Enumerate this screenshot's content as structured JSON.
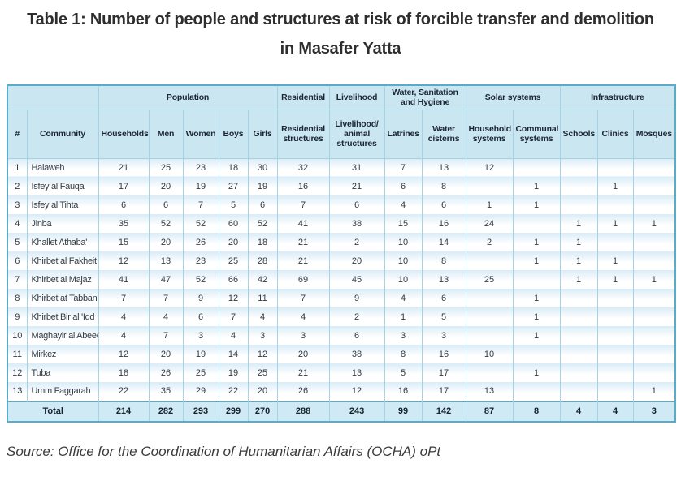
{
  "chart_data": {
    "type": "table",
    "title": "Table 1: Number of people and structures at risk of forcible transfer and demolition in Masafer Yatta",
    "source": "Source: Office for the Coordination of Humanitarian Affairs (OCHA) oPt",
    "group_headers": [
      {
        "label": "",
        "colspan": 2
      },
      {
        "label": "Population",
        "colspan": 5
      },
      {
        "label": "Residential",
        "colspan": 1
      },
      {
        "label": "Livelihood",
        "colspan": 1
      },
      {
        "label": "Water, Sanitation and Hygiene",
        "colspan": 2
      },
      {
        "label": "Solar systems",
        "colspan": 2
      },
      {
        "label": "Infrastructure",
        "colspan": 3
      }
    ],
    "columns": [
      "#",
      "Community",
      "Households",
      "Men",
      "Women",
      "Boys",
      "Girls",
      "Residential structures",
      "Livelihood/ animal structures",
      "Latrines",
      "Water cisterns",
      "Household systems",
      "Communal systems",
      "Schools",
      "Clinics",
      "Mosques"
    ],
    "rows": [
      [
        1,
        "Halaweh",
        21,
        25,
        23,
        18,
        30,
        32,
        31,
        7,
        13,
        12,
        "",
        "",
        "",
        ""
      ],
      [
        2,
        "Isfey al Fauqa",
        17,
        20,
        19,
        27,
        19,
        16,
        21,
        6,
        8,
        "",
        1,
        "",
        1,
        ""
      ],
      [
        3,
        "Isfey al Tihta",
        6,
        6,
        7,
        5,
        6,
        7,
        6,
        4,
        6,
        1,
        1,
        "",
        "",
        ""
      ],
      [
        4,
        "Jinba",
        35,
        52,
        52,
        60,
        52,
        41,
        38,
        15,
        16,
        24,
        "",
        1,
        1,
        1
      ],
      [
        5,
        "Khallet Athaba'",
        15,
        20,
        26,
        20,
        18,
        21,
        2,
        10,
        14,
        2,
        1,
        1,
        "",
        ""
      ],
      [
        6,
        "Khirbet al Fakheit",
        12,
        13,
        23,
        25,
        28,
        21,
        20,
        10,
        8,
        "",
        1,
        1,
        1,
        ""
      ],
      [
        7,
        "Khirbet al Majaz",
        41,
        47,
        52,
        66,
        42,
        69,
        45,
        10,
        13,
        25,
        "",
        1,
        1,
        1
      ],
      [
        8,
        "Khirbet at Tabban",
        7,
        7,
        9,
        12,
        11,
        7,
        9,
        4,
        6,
        "",
        1,
        "",
        "",
        ""
      ],
      [
        9,
        "Khirbet Bir al 'Idd",
        4,
        4,
        6,
        7,
        4,
        4,
        2,
        1,
        5,
        "",
        1,
        "",
        "",
        ""
      ],
      [
        10,
        "Maghayir al Abeed",
        4,
        7,
        3,
        4,
        3,
        3,
        6,
        3,
        3,
        "",
        1,
        "",
        "",
        ""
      ],
      [
        11,
        "Mirkez",
        12,
        20,
        19,
        14,
        12,
        20,
        38,
        8,
        16,
        10,
        "",
        "",
        "",
        ""
      ],
      [
        12,
        "Tuba",
        18,
        26,
        25,
        19,
        25,
        21,
        13,
        5,
        17,
        "",
        1,
        "",
        "",
        ""
      ],
      [
        13,
        "Umm Faggarah",
        22,
        35,
        29,
        22,
        20,
        26,
        12,
        16,
        17,
        13,
        "",
        "",
        "",
        1
      ]
    ],
    "total_row": {
      "label": "Total",
      "values": [
        214,
        282,
        293,
        299,
        270,
        288,
        243,
        99,
        142,
        87,
        8,
        4,
        4,
        3
      ]
    }
  },
  "colors": {
    "outer-border": "#58acc8",
    "grid-line": "#a6d3e3",
    "header-bg": "#c9e6f1",
    "stripe": "#d9ecf7",
    "total-bg": "#cfeaf4",
    "title-text": "#2e2e2e"
  }
}
